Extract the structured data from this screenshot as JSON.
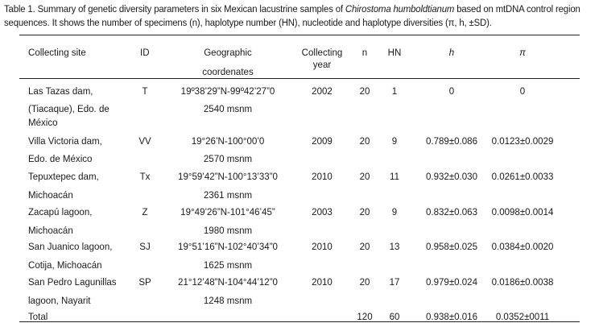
{
  "caption": {
    "part1": "Table 1. Summary of genetic diversity parameters in six Mexican lacustrine samples of ",
    "species": "Chirostoma humboldtianum",
    "part2": " based on mtDNA control region",
    "line2": "sequences. It shows the number of specimens (n), haplotype number (HN), nucleotide and haplotype diversities (π, h, ±SD)."
  },
  "headers": {
    "site": "Collecting site",
    "id": "ID",
    "coords_1": "Geographic",
    "coords_2": "coordenates",
    "year_1": "Collecting",
    "year_2": "year",
    "n": "n",
    "hn": "HN",
    "h": "h",
    "pi": "π"
  },
  "rows": [
    {
      "site_1": "Las Tazas dam,",
      "site_2": "(Tiacaque), Edo. de",
      "site_3": "México",
      "id": "T",
      "coord": "19º38’29”N-99º42’27”0",
      "alt": "2540 msnm",
      "year": "2002",
      "n": "20",
      "hn": "1",
      "h": "0",
      "pi": "0"
    },
    {
      "site_1": "Villa Victoria dam,",
      "site_2": "Edo. de México",
      "id": "VV",
      "coord": "19°26’N-100°00’0",
      "alt": "2570 msnm",
      "year": "2009",
      "n": "20",
      "hn": "9",
      "h": "0.789±0.086",
      "pi": "0.0123±0.0029"
    },
    {
      "site_1": "Tepuxtepec dam,",
      "site_2": "Michoacán",
      "id": "Tx",
      "coord": "19°59’42”N-100°13’33”0",
      "alt": "2361 msnm",
      "year": "2010",
      "n": "20",
      "hn": "11",
      "h": "0.932±0.030",
      "pi": "0.0261±0.0033"
    },
    {
      "site_1": "Zacapú lagoon,",
      "site_2": "Michoacán",
      "id": "Z",
      "coord": "19°49’26”N-101°46’45”",
      "alt": "1980 msnm",
      "year": "2003",
      "n": "20",
      "hn": "9",
      "h": "0.832±0.063",
      "pi": "0.0098±0.0014"
    },
    {
      "site_1": "San Juanico lagoon,",
      "site_2": "Cotija, Michoacán",
      "id": "SJ",
      "coord": "19°51’16”N-102°40’34”0",
      "alt": "1625 msnm",
      "year": "2010",
      "n": "20",
      "hn": "13",
      "h": "0.958±0.025",
      "pi": "0.0384±0.0020"
    },
    {
      "site_1": "San Pedro Lagunillas",
      "site_2": "lagoon, Nayarit",
      "id": "SP",
      "coord": "21°12’48”N-104°44’12”0",
      "alt": "1248 msnm",
      "year": "2010",
      "n": "20",
      "hn": "17",
      "h": "0.979±0.024",
      "pi": "0.0186±0.0038"
    }
  ],
  "total": {
    "label": "Total",
    "n": "120",
    "hn": "60",
    "h": "0.938±0.016",
    "pi": "0.0352±0011"
  }
}
